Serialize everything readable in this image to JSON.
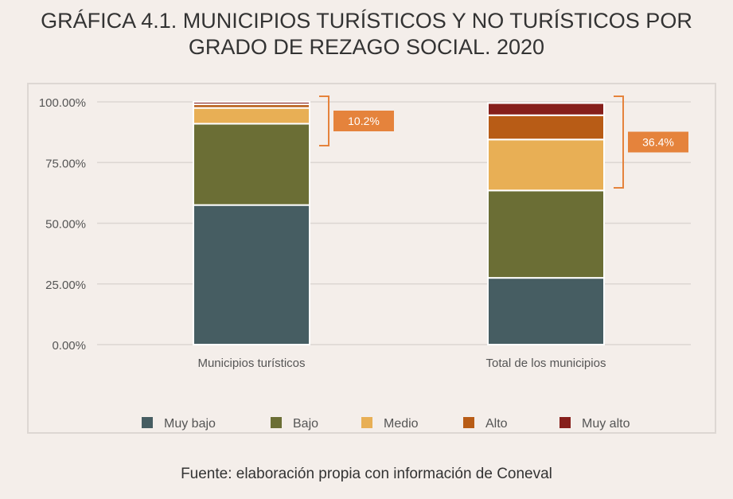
{
  "title": {
    "line1": "GRÁFICA 4.1. MUNICIPIOS TURÍSTICOS Y NO TURÍSTICOS POR",
    "line2": "GRADO DE REZAGO SOCIAL. 2020"
  },
  "source": "Fuente: elaboración propia con información de Coneval",
  "colors": {
    "Muy bajo": "#465d62",
    "Bajo": "#6b6e35",
    "Medio": "#e8af55",
    "Alto": "#b85c16",
    "Muy alto": "#861f1b",
    "callout": "#e5833c"
  },
  "chart_data": {
    "type": "bar",
    "stacked": true,
    "categories": [
      "Municipios turísticos",
      "Total de los municipios"
    ],
    "series": [
      {
        "name": "Muy bajo",
        "values": [
          57.5,
          27.5
        ]
      },
      {
        "name": "Bajo",
        "values": [
          33.5,
          36.0
        ]
      },
      {
        "name": "Medio",
        "values": [
          6.5,
          21.0
        ]
      },
      {
        "name": "Alto",
        "values": [
          1.5,
          10.0
        ]
      },
      {
        "name": "Muy alto",
        "values": [
          1.0,
          5.0
        ]
      }
    ],
    "yticks": [
      "0.00%",
      "25.00%",
      "50.00%",
      "75.00%",
      "100.00%"
    ],
    "ylim": [
      0,
      100
    ],
    "grid": true,
    "legend_position": "bottom",
    "annotations": [
      "10.2%",
      "36.4%"
    ]
  }
}
